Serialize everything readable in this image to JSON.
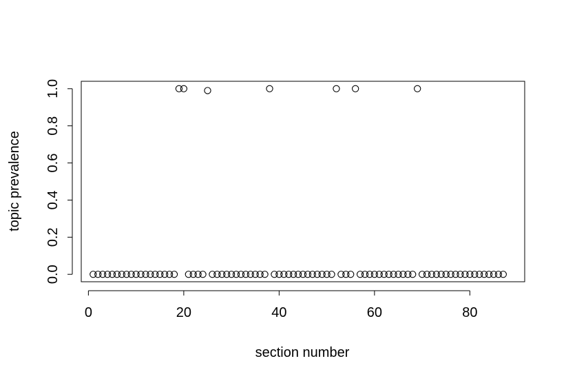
{
  "chart_data": {
    "type": "scatter",
    "xlabel": "section number",
    "ylabel": "topic prevalence",
    "x": [
      1,
      2,
      3,
      4,
      5,
      6,
      7,
      8,
      9,
      10,
      11,
      12,
      13,
      14,
      15,
      16,
      17,
      18,
      19,
      20,
      21,
      22,
      23,
      24,
      25,
      26,
      27,
      28,
      29,
      30,
      31,
      32,
      33,
      34,
      35,
      36,
      37,
      38,
      39,
      40,
      41,
      42,
      43,
      44,
      45,
      46,
      47,
      48,
      49,
      50,
      51,
      52,
      53,
      54,
      55,
      56,
      57,
      58,
      59,
      60,
      61,
      62,
      63,
      64,
      65,
      66,
      67,
      68,
      69,
      70,
      71,
      72,
      73,
      74,
      75,
      76,
      77,
      78,
      79,
      80,
      81,
      82,
      83,
      84,
      85,
      86,
      87
    ],
    "y": [
      0,
      0,
      0,
      0,
      0,
      0,
      0,
      0,
      0,
      0,
      0,
      0,
      0,
      0,
      0,
      0,
      0,
      0,
      1.0,
      1.0,
      0,
      0,
      0,
      0,
      0.99,
      0,
      0,
      0,
      0,
      0,
      0,
      0,
      0,
      0,
      0,
      0,
      0,
      1.0,
      0,
      0,
      0,
      0,
      0,
      0,
      0,
      0,
      0,
      0,
      0,
      0,
      0,
      1.0,
      0,
      0,
      0,
      1.0,
      0,
      0,
      0,
      0,
      0,
      0,
      0,
      0,
      0,
      0,
      0,
      0,
      1.0,
      0,
      0,
      0,
      0,
      0,
      0,
      0,
      0,
      0,
      0,
      0,
      0,
      0,
      0,
      0,
      0,
      0,
      0
    ],
    "xlim": [
      -1.5,
      91.5
    ],
    "ylim": [
      -0.04,
      1.04
    ],
    "x_ticks": [
      0,
      20,
      40,
      60,
      80
    ],
    "x_tick_labels": [
      "0",
      "20",
      "40",
      "60",
      "80"
    ],
    "y_ticks": [
      0,
      0.2,
      0.4,
      0.6,
      0.8,
      1.0
    ],
    "y_tick_labels": [
      "0.0",
      "0.2",
      "0.4",
      "0.6",
      "0.8",
      "1.0"
    ],
    "marker": "open-circle",
    "grid": false,
    "legend": "none"
  }
}
